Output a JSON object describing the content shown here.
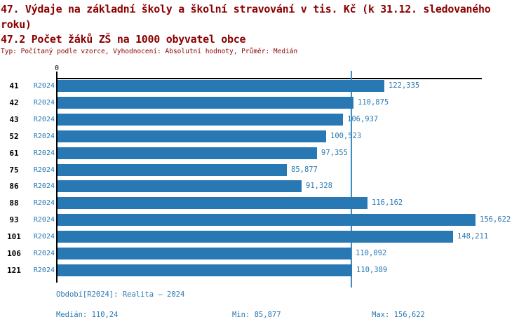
{
  "header": {
    "title_line1": "47. Výdaje na základní školy a školní stravování v tis. Kč (k 31.12. sledovaného",
    "title_line2": "roku)",
    "subtitle": "47.2 Počet žáků ZŠ na 1000 obyvatel obce",
    "meta": "Typ: Počítaný podle vzorce, Vyhodnocení: Absolutní hodnoty, Průměr: Medián"
  },
  "chart_data": {
    "type": "bar",
    "orientation": "horizontal",
    "title": "47.2 Počet žáků ZŠ na 1000 obyvatel obce",
    "categories": [
      "41",
      "42",
      "43",
      "52",
      "61",
      "75",
      "86",
      "88",
      "93",
      "101",
      "106",
      "121"
    ],
    "row_period_label": "R2024",
    "series": [
      {
        "name": "R2024",
        "values": [
          122.335,
          110.875,
          106.937,
          100.523,
          97.355,
          85.877,
          91.328,
          116.162,
          156.622,
          148.211,
          110.092,
          110.389
        ]
      }
    ],
    "value_labels": [
      "122,335",
      "110,875",
      "106,937",
      "100,523",
      "97,355",
      "85,877",
      "91,328",
      "116,162",
      "156,622",
      "148,211",
      "110,092",
      "110,389"
    ],
    "xlim": [
      0,
      159
    ],
    "x_tick_labels": [
      "0"
    ],
    "median_value": 110.24,
    "min_value": 85.877,
    "max_value": 156.622,
    "grid": false,
    "legend": false,
    "bar_color": "#2878b4",
    "median_line_color": "#3e8ec4"
  },
  "footer": {
    "period_info": "Období[R2024]: Realita – 2024",
    "median_label": "Medián: 110,24",
    "min_label": "Min: 85,877",
    "max_label": "Max: 156,622"
  },
  "colors": {
    "title_text": "#8b0000",
    "value_text": "#2878b4",
    "axis": "#000000",
    "background": "#ffffff"
  }
}
